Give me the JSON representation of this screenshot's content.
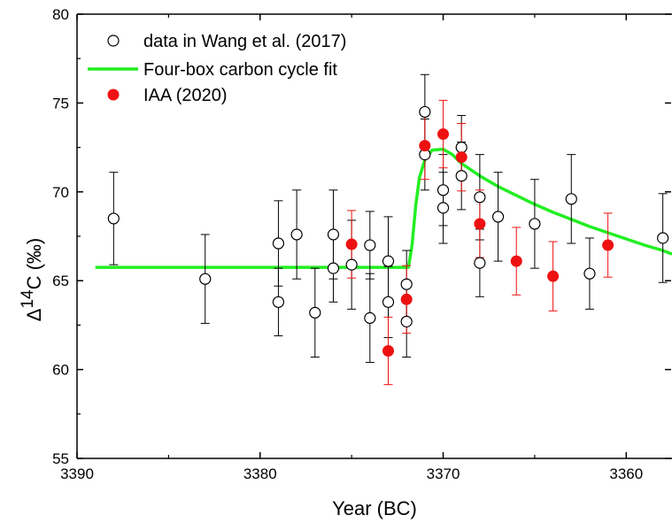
{
  "chart_data": {
    "type": "scatter",
    "title": "",
    "xlabel": "Year (BC)",
    "ylabel": "Δ14C (‰)",
    "ylabel_parts": {
      "delta": "Δ",
      "sup": "14",
      "rest": "C (‰)"
    },
    "xlim": [
      3390,
      3357.5
    ],
    "ylim": [
      55,
      80
    ],
    "x_reversed": true,
    "x_ticks": [
      3390,
      3380,
      3370,
      3360
    ],
    "x_tick_labels": [
      "3390",
      "3380",
      "3370",
      "3360"
    ],
    "y_ticks": [
      55,
      60,
      65,
      70,
      75,
      80
    ],
    "y_tick_labels": [
      "55",
      "60",
      "65",
      "70",
      "75",
      "80"
    ],
    "grid": false,
    "legend_position": "top-left",
    "series": [
      {
        "name": "data in Wang et al. (2017)",
        "kind": "points-open",
        "color": "#000000",
        "points": [
          {
            "x": 3388,
            "y": 68.5,
            "err": 2.6
          },
          {
            "x": 3383,
            "y": 65.1,
            "err": 2.5
          },
          {
            "x": 3379,
            "y": 67.1,
            "err": 2.4
          },
          {
            "x": 3379,
            "y": 63.8,
            "err": 1.9
          },
          {
            "x": 3378,
            "y": 67.6,
            "err": 2.5
          },
          {
            "x": 3377,
            "y": 63.2,
            "err": 2.5
          },
          {
            "x": 3376,
            "y": 67.6,
            "err": 2.5
          },
          {
            "x": 3376,
            "y": 65.7,
            "err": 1.9
          },
          {
            "x": 3375,
            "y": 65.9,
            "err": 2.5
          },
          {
            "x": 3374,
            "y": 67.0,
            "err": 1.9
          },
          {
            "x": 3374,
            "y": 62.9,
            "err": 2.5
          },
          {
            "x": 3373,
            "y": 66.1,
            "err": 2.5
          },
          {
            "x": 3373,
            "y": 63.8,
            "err": 2.0
          },
          {
            "x": 3372,
            "y": 64.8,
            "err": 1.9
          },
          {
            "x": 3372,
            "y": 62.7,
            "err": 2.0
          },
          {
            "x": 3371,
            "y": 74.5,
            "err": 2.1
          },
          {
            "x": 3371,
            "y": 72.1,
            "err": 2.0
          },
          {
            "x": 3370,
            "y": 70.1,
            "err": 2.0
          },
          {
            "x": 3370,
            "y": 69.1,
            "err": 2.0
          },
          {
            "x": 3369,
            "y": 72.5,
            "err": 1.8
          },
          {
            "x": 3369,
            "y": 70.9,
            "err": 1.9
          },
          {
            "x": 3368,
            "y": 69.7,
            "err": 2.4
          },
          {
            "x": 3368,
            "y": 66.0,
            "err": 1.9
          },
          {
            "x": 3367,
            "y": 68.6,
            "err": 2.5
          },
          {
            "x": 3365,
            "y": 68.2,
            "err": 2.5
          },
          {
            "x": 3363,
            "y": 69.6,
            "err": 2.5
          },
          {
            "x": 3362,
            "y": 65.4,
            "err": 2.0
          },
          {
            "x": 3358,
            "y": 67.4,
            "err": 2.5
          }
        ]
      },
      {
        "name": "Four-box carbon cycle fit",
        "kind": "line",
        "color": "#22ee22",
        "points": [
          {
            "x": 3389,
            "y": 65.75
          },
          {
            "x": 3371.9,
            "y": 65.75
          },
          {
            "x": 3371.7,
            "y": 67.0
          },
          {
            "x": 3371.5,
            "y": 69.2
          },
          {
            "x": 3371.3,
            "y": 70.8
          },
          {
            "x": 3371.0,
            "y": 71.8
          },
          {
            "x": 3370.6,
            "y": 72.35
          },
          {
            "x": 3370.0,
            "y": 72.4
          },
          {
            "x": 3369.5,
            "y": 72.1
          },
          {
            "x": 3369.0,
            "y": 71.6
          },
          {
            "x": 3368.0,
            "y": 70.9
          },
          {
            "x": 3367.0,
            "y": 70.3
          },
          {
            "x": 3366.0,
            "y": 69.8
          },
          {
            "x": 3365.0,
            "y": 69.3
          },
          {
            "x": 3364.0,
            "y": 68.85
          },
          {
            "x": 3363.0,
            "y": 68.45
          },
          {
            "x": 3362.0,
            "y": 68.05
          },
          {
            "x": 3361.0,
            "y": 67.7
          },
          {
            "x": 3360.0,
            "y": 67.35
          },
          {
            "x": 3359.0,
            "y": 67.0
          },
          {
            "x": 3358.0,
            "y": 66.7
          },
          {
            "x": 3357.5,
            "y": 66.5
          }
        ]
      },
      {
        "name": "IAA (2020)",
        "kind": "points-filled",
        "color": "#ee1111",
        "points": [
          {
            "x": 3375,
            "y": 67.05,
            "err": 1.9
          },
          {
            "x": 3373,
            "y": 61.05,
            "err": 1.9
          },
          {
            "x": 3372,
            "y": 63.95,
            "err": 1.9
          },
          {
            "x": 3371,
            "y": 72.6,
            "err": 1.9
          },
          {
            "x": 3370,
            "y": 73.25,
            "err": 1.9
          },
          {
            "x": 3369,
            "y": 71.95,
            "err": 1.9
          },
          {
            "x": 3368,
            "y": 68.2,
            "err": 1.9
          },
          {
            "x": 3366,
            "y": 66.1,
            "err": 1.9
          },
          {
            "x": 3364,
            "y": 65.25,
            "err": 1.95
          },
          {
            "x": 3361,
            "y": 67.0,
            "err": 1.8
          }
        ]
      }
    ]
  }
}
